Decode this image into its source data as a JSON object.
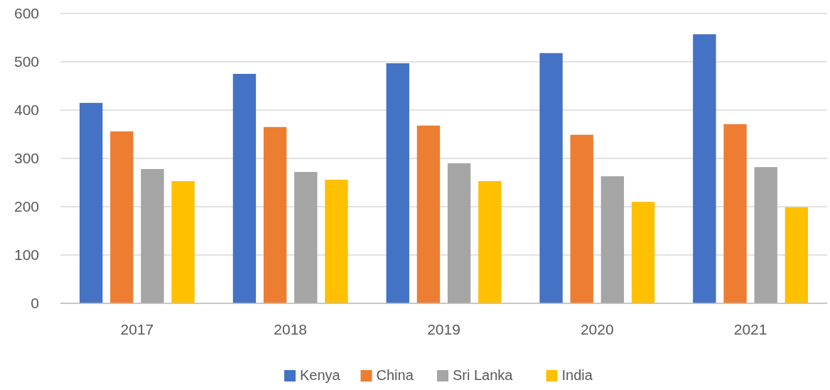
{
  "chart_data": {
    "type": "bar",
    "categories": [
      "2017",
      "2018",
      "2019",
      "2020",
      "2021"
    ],
    "series": [
      {
        "name": "Kenya",
        "color": "#4472c4",
        "values": [
          415,
          475,
          497,
          518,
          557
        ]
      },
      {
        "name": "China",
        "color": "#ed7d31",
        "values": [
          356,
          365,
          368,
          349,
          371
        ]
      },
      {
        "name": "Sri Lanka",
        "color": "#a5a5a5",
        "values": [
          278,
          272,
          290,
          263,
          282
        ]
      },
      {
        "name": "India",
        "color": "#ffc000",
        "values": [
          253,
          256,
          253,
          210,
          199
        ]
      }
    ],
    "ylim": [
      0,
      600
    ],
    "yticks": [
      0,
      100,
      200,
      300,
      400,
      500,
      600
    ],
    "grid": "y",
    "legend": "bottom"
  }
}
